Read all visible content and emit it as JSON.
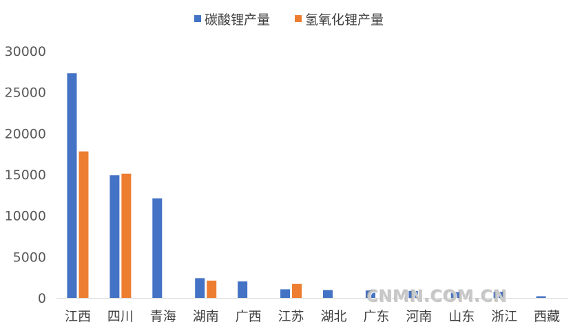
{
  "colors": {
    "series_1": "#4472C4",
    "series_2": "#ED7D31",
    "axis": "#D9D9D9"
  },
  "watermark": "CNMN.COM.CN",
  "chart_data": {
    "type": "bar",
    "title": "",
    "xlabel": "",
    "ylabel": "",
    "ylim": [
      0,
      30000
    ],
    "yticks": [
      "0",
      "5000",
      "10000",
      "15000",
      "20000",
      "25000",
      "30000"
    ],
    "grid": false,
    "legend_position": "top",
    "categories": [
      "江西",
      "四川",
      "青海",
      "湖南",
      "广西",
      "江苏",
      "湖北",
      "广东",
      "河南",
      "山东",
      "浙江",
      "西藏"
    ],
    "series": [
      {
        "name": "碳酸锂产量",
        "values": [
          27300,
          14900,
          12100,
          2400,
          2000,
          1050,
          950,
          900,
          850,
          700,
          750,
          200
        ]
      },
      {
        "name": "氢氧化锂产量",
        "values": [
          17800,
          15100,
          0,
          2100,
          0,
          1700,
          0,
          0,
          0,
          0,
          0,
          0
        ]
      }
    ]
  }
}
